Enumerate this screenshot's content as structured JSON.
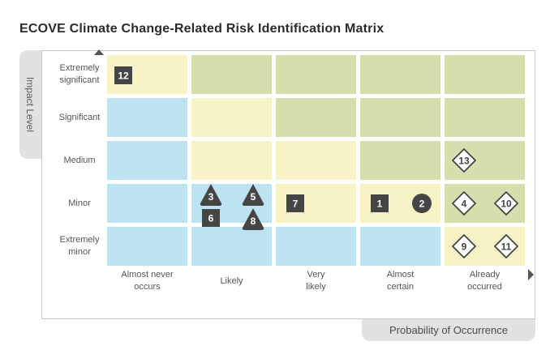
{
  "title": "ECOVE Climate Change-Related Risk Identification Matrix",
  "y_axis_label": "Impact Level",
  "x_axis_label": "Probability of Occurrence",
  "colors": {
    "blue": "#bde2f0",
    "yellow": "#f7f3c6",
    "green": "#d5deac",
    "marker": "#454545"
  },
  "chart_data": {
    "type": "heatmap",
    "title": "ECOVE Climate Change-Related Risk Identification Matrix",
    "xlabel": "Probability of Occurrence",
    "ylabel": "Impact Level",
    "x_categories": [
      "Almost never\noccurs",
      "Likely",
      "Very\nlikely",
      "Almost\ncertain",
      "Already\noccurred"
    ],
    "y_categories": [
      "Extremely\nsignificant",
      "Significant",
      "Medium",
      "Minor",
      "Extremely\nminor"
    ],
    "cell_colors": [
      [
        "yellow",
        "green",
        "green",
        "green",
        "green"
      ],
      [
        "blue",
        "yellow",
        "green",
        "green",
        "green"
      ],
      [
        "blue",
        "yellow",
        "yellow",
        "green",
        "green"
      ],
      [
        "blue",
        "blue",
        "yellow",
        "yellow",
        "green"
      ],
      [
        "blue",
        "blue",
        "blue",
        "blue",
        "yellow"
      ]
    ],
    "risks": [
      {
        "id": "12",
        "shape": "square",
        "row": 0,
        "col": 0,
        "slot": 0
      },
      {
        "id": "13",
        "shape": "diamond",
        "row": 2,
        "col": 4,
        "slot": 0
      },
      {
        "id": "3",
        "shape": "triangle",
        "row": 3,
        "col": 1,
        "slot": 0
      },
      {
        "id": "5",
        "shape": "triangle",
        "row": 3,
        "col": 1,
        "slot": 1
      },
      {
        "id": "6",
        "shape": "square",
        "row": 3,
        "col": 1,
        "slot": 2
      },
      {
        "id": "8",
        "shape": "triangle",
        "row": 3,
        "col": 1,
        "slot": 3
      },
      {
        "id": "7",
        "shape": "square",
        "row": 3,
        "col": 2,
        "slot": 0
      },
      {
        "id": "1",
        "shape": "square",
        "row": 3,
        "col": 3,
        "slot": 0
      },
      {
        "id": "2",
        "shape": "circle",
        "row": 3,
        "col": 3,
        "slot": 1
      },
      {
        "id": "4",
        "shape": "diamond",
        "row": 3,
        "col": 4,
        "slot": 0
      },
      {
        "id": "10",
        "shape": "diamond",
        "row": 3,
        "col": 4,
        "slot": 1
      },
      {
        "id": "9",
        "shape": "diamond",
        "row": 4,
        "col": 4,
        "slot": 0
      },
      {
        "id": "11",
        "shape": "diamond",
        "row": 4,
        "col": 4,
        "slot": 1
      }
    ]
  }
}
